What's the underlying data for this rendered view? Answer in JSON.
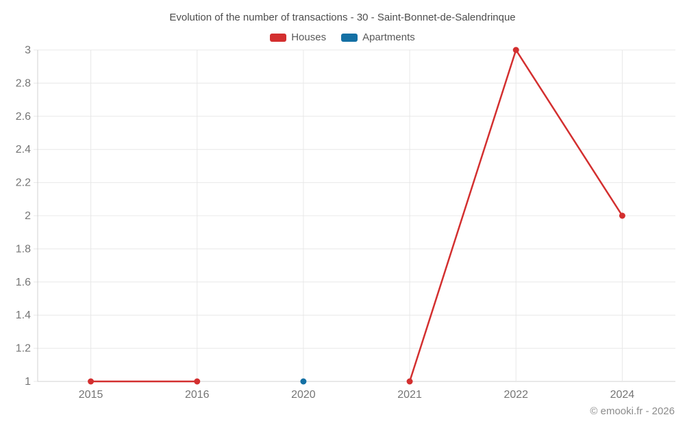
{
  "chart": {
    "title": "Evolution of the number of transactions - 30 - Saint-Bonnet-de-Salendrinque",
    "footer": "© emooki.fr - 2026"
  },
  "chart_data": {
    "type": "line",
    "title": "Evolution of the number of transactions - 30 - Saint-Bonnet-de-Salendrinque",
    "categories": [
      "2015",
      "2016",
      "2020",
      "2021",
      "2022",
      "2024"
    ],
    "series": [
      {
        "name": "Houses",
        "color": "#d32f2f",
        "values": [
          1,
          1,
          null,
          1,
          3,
          2
        ]
      },
      {
        "name": "Apartments",
        "color": "#1470a4",
        "values": [
          null,
          null,
          1,
          null,
          null,
          null
        ]
      }
    ],
    "xlabel": "",
    "ylabel": "",
    "ylim": [
      1,
      3
    ],
    "ytick_step": 0.2,
    "ytick_labels": [
      "1",
      "1.2",
      "1.4",
      "1.6",
      "1.8",
      "2",
      "2.2",
      "2.4",
      "2.6",
      "2.8",
      "3"
    ],
    "grid": true,
    "legend_position": "top",
    "colors": {
      "gridline": "#e8e8e8",
      "axis_line": "#d0d0d0",
      "tick_label": "#757575",
      "title_text": "#4d4d4d",
      "legend_text": "#595959",
      "footer_text": "#8c8c8c"
    }
  }
}
